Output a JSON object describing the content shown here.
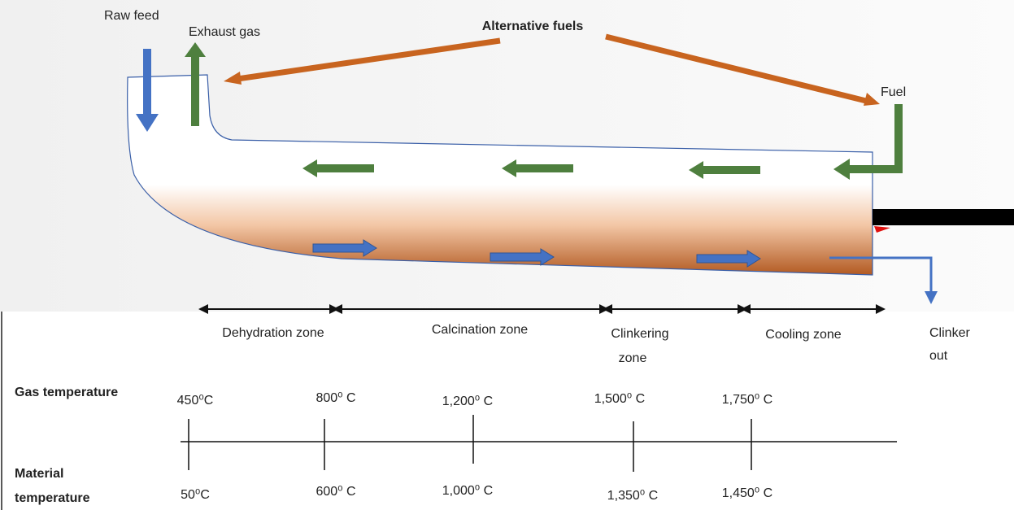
{
  "labels": {
    "raw_feed": "Raw feed",
    "exhaust_gas": "Exhaust gas",
    "alternative_fuels": "Alternative fuels",
    "fuel": "Fuel",
    "clinker_out": [
      "Clinker",
      "out"
    ]
  },
  "zones": [
    [
      "Dehydration zone"
    ],
    [
      "Calcination zone"
    ],
    [
      "Clinkering",
      "zone"
    ],
    [
      "Cooling zone"
    ]
  ],
  "temperatures": {
    "gas_label": "Gas temperature",
    "material_label": [
      "Material",
      "temperature"
    ],
    "gas": [
      "450⁰C",
      "800⁰ C",
      "1,200⁰ C",
      "1,500⁰ C",
      "1,750⁰ C"
    ],
    "material": [
      "50⁰C",
      "600⁰ C",
      "1,000⁰ C",
      "1,350⁰ C",
      "1,450⁰ C"
    ]
  }
}
